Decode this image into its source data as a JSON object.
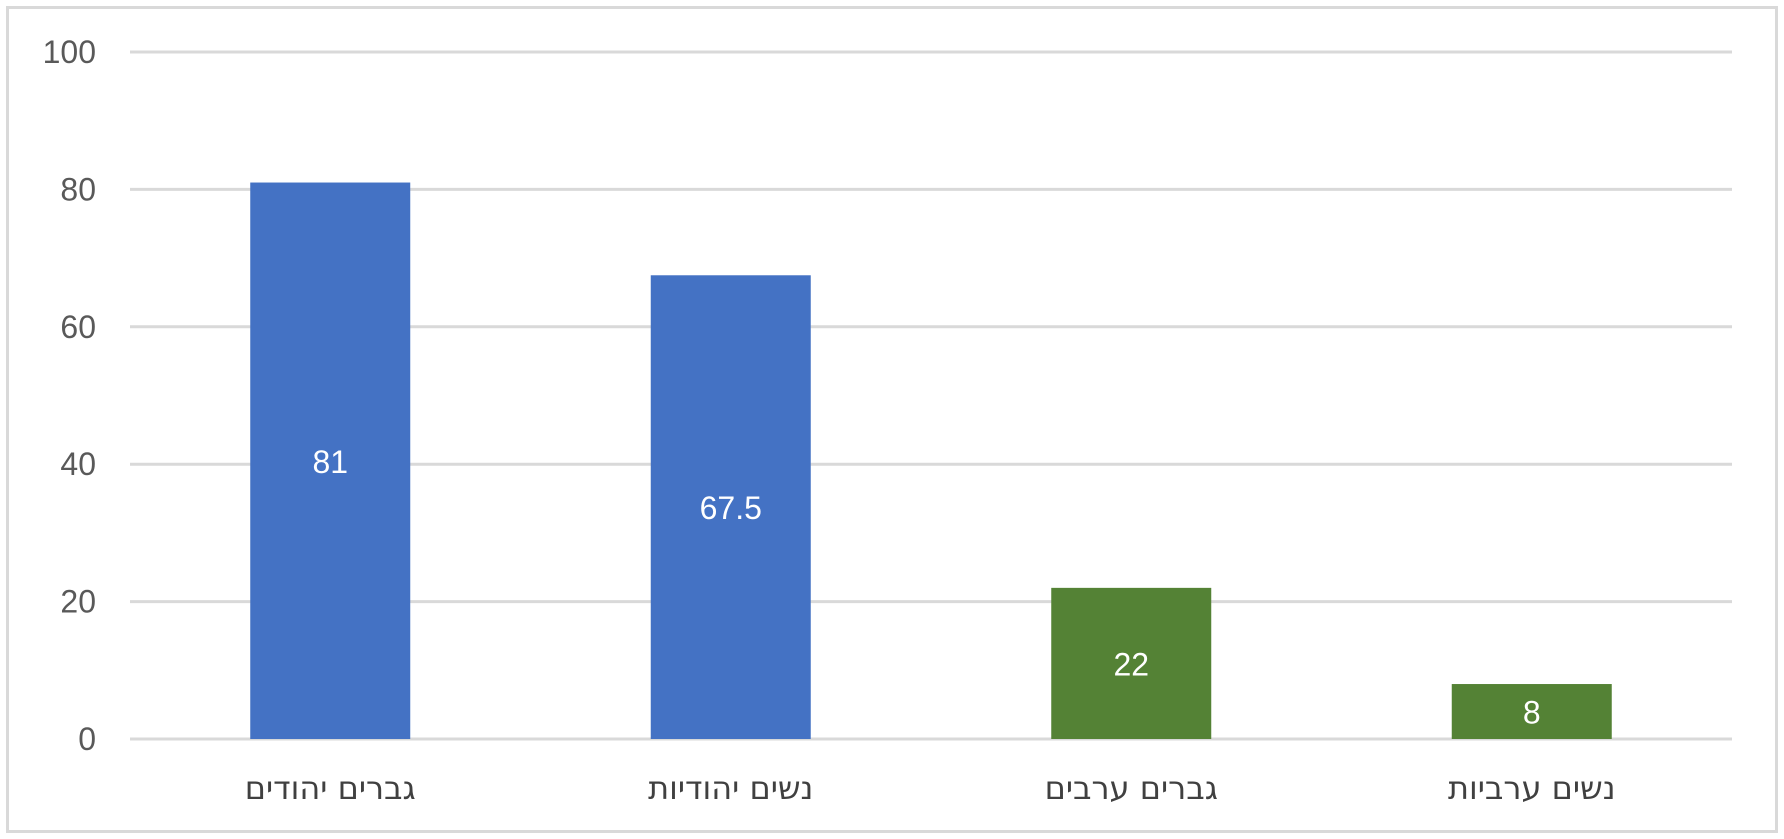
{
  "chart_data": {
    "type": "bar",
    "title": "",
    "xlabel": "",
    "ylabel": "",
    "categories": [
      "גברים יהודים",
      "נשים יהודיות",
      "גברים ערבים",
      "נשים ערביות"
    ],
    "values": [
      81,
      67.5,
      22,
      8
    ],
    "data_labels": [
      "81",
      "67.5",
      "22",
      "8"
    ],
    "bar_colors": [
      "#4472c4",
      "#4472c4",
      "#548235",
      "#548235"
    ],
    "ylim": [
      0,
      100
    ],
    "yticks": [
      0,
      20,
      40,
      60,
      80,
      100
    ],
    "ytick_labels": [
      "0",
      "20",
      "40",
      "60",
      "80",
      "100"
    ],
    "grid": true,
    "legend": "none"
  },
  "colors": {
    "grid": "#d9d9d9",
    "frame": "#d9d9d9"
  }
}
